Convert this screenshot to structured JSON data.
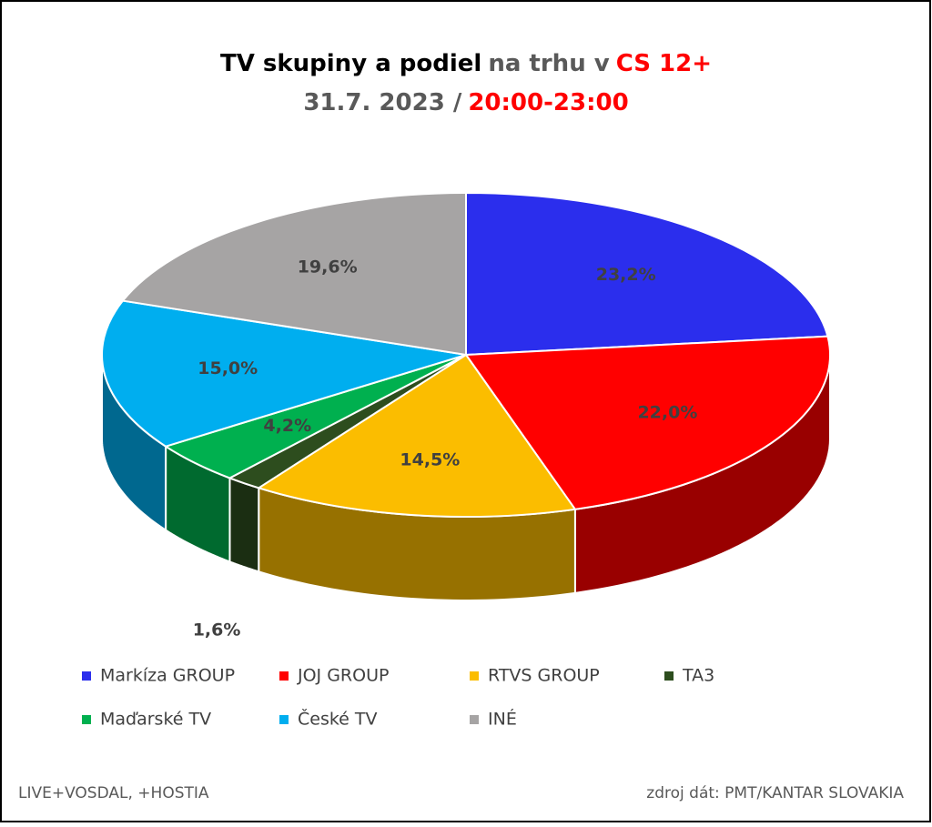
{
  "chart_data": {
    "type": "pie3d",
    "title_parts": [
      {
        "text": "TV skupiny a podiel",
        "color": "#000000"
      },
      {
        "text": "na trhu v",
        "color": "#595959"
      },
      {
        "text": "CS 12+",
        "color": "#ff0000"
      }
    ],
    "subtitle_parts": [
      {
        "text": "31.7. 2023 /",
        "color": "#595959"
      },
      {
        "text": "20:00-23:00",
        "color": "#ff0000"
      }
    ],
    "categories": [
      "Markíza GROUP",
      "JOJ GROUP",
      "RTVS GROUP",
      "TA3",
      "Maďarské  TV",
      "České  TV",
      "INÉ"
    ],
    "values": [
      23.2,
      22.0,
      14.5,
      1.6,
      4.2,
      15.0,
      19.6
    ],
    "value_labels": [
      "23,2%",
      "22,0%",
      "14,5%",
      "1,6%",
      "4,2%",
      "15,0%",
      "19,6%"
    ],
    "colors": [
      "#2b2eed",
      "#ff0000",
      "#fbbd00",
      "#2d4d1e",
      "#00b04f",
      "#00aeef",
      "#a6a4a4"
    ],
    "footnote_left": "LIVE+VOSDAL, +HOSTIA",
    "footnote_right": "zdroj dát: PMT/KANTAR SLOVAKIA"
  }
}
